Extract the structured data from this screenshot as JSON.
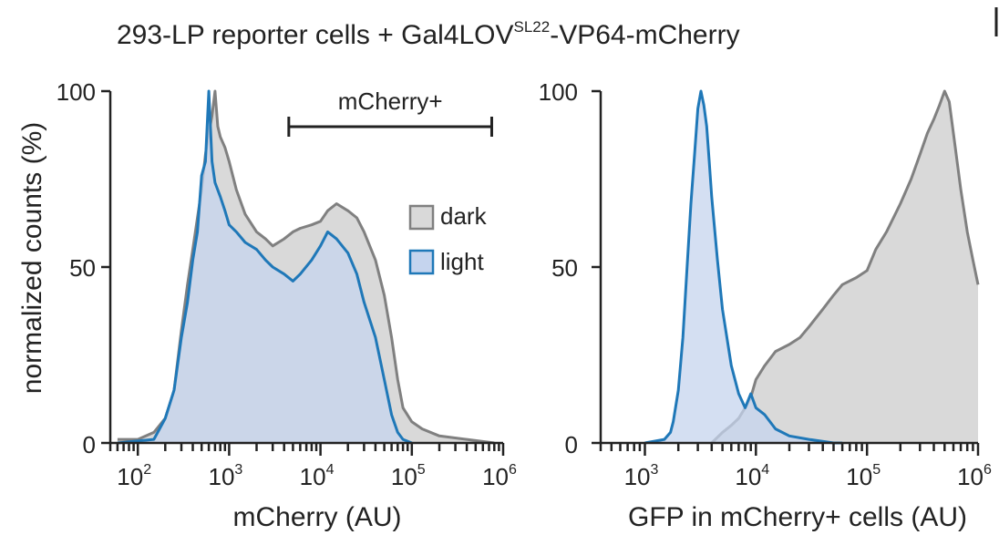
{
  "figure": {
    "title_main": "293-LP reporter cells + Gal4LOV",
    "title_sup": "SL22",
    "title_end": "-VP64-mCherry"
  },
  "colors": {
    "dark_fill": "#d9d9d9",
    "dark_line": "#808080",
    "light_fill": "#c5d4ee",
    "light_line": "#1f78b8",
    "overlap_fill": "#a9b6cc",
    "axis": "#222222"
  },
  "chart_data": [
    {
      "type": "area",
      "panel": "left",
      "xlabel": "mCherry (AU)",
      "ylabel": "normalized counts (%)",
      "xscale": "log",
      "xlim": [
        50,
        1000000
      ],
      "ylim": [
        0,
        100
      ],
      "xtick_labels": [
        "10",
        "10",
        "10",
        "10",
        "10"
      ],
      "xtick_exponents": [
        "2",
        "3",
        "4",
        "5",
        "6"
      ],
      "ytick_labels": [
        "0",
        "50",
        "100"
      ],
      "legend": {
        "position": "center-right",
        "entries": [
          "dark",
          "light"
        ]
      },
      "gate": {
        "label": "mCherry+",
        "x_from": 4500,
        "x_to": 750000
      },
      "series": [
        {
          "name": "dark",
          "points": [
            [
              60,
              1
            ],
            [
              100,
              1
            ],
            [
              150,
              3
            ],
            [
              200,
              7
            ],
            [
              250,
              15
            ],
            [
              300,
              32
            ],
            [
              350,
              45
            ],
            [
              400,
              55
            ],
            [
              450,
              64
            ],
            [
              500,
              72
            ],
            [
              550,
              82
            ],
            [
              600,
              88
            ],
            [
              650,
              93
            ],
            [
              700,
              100
            ],
            [
              750,
              90
            ],
            [
              800,
              87
            ],
            [
              900,
              84
            ],
            [
              1000,
              80
            ],
            [
              1200,
              72
            ],
            [
              1500,
              65
            ],
            [
              2000,
              60
            ],
            [
              2500,
              58
            ],
            [
              3000,
              56
            ],
            [
              4000,
              58
            ],
            [
              5000,
              60
            ],
            [
              6000,
              61
            ],
            [
              8000,
              62
            ],
            [
              10000,
              63
            ],
            [
              12000,
              66
            ],
            [
              15000,
              68
            ],
            [
              20000,
              66
            ],
            [
              25000,
              64
            ],
            [
              30000,
              60
            ],
            [
              40000,
              52
            ],
            [
              50000,
              42
            ],
            [
              60000,
              30
            ],
            [
              70000,
              18
            ],
            [
              80000,
              10
            ],
            [
              100000,
              6
            ],
            [
              130000,
              4
            ],
            [
              200000,
              2
            ],
            [
              400000,
              1
            ],
            [
              800000,
              0
            ]
          ]
        },
        {
          "name": "light",
          "points": [
            [
              60,
              0
            ],
            [
              150,
              1
            ],
            [
              200,
              7
            ],
            [
              250,
              15
            ],
            [
              300,
              30
            ],
            [
              350,
              40
            ],
            [
              400,
              52
            ],
            [
              450,
              60
            ],
            [
              500,
              76
            ],
            [
              550,
              80
            ],
            [
              600,
              100
            ],
            [
              650,
              80
            ],
            [
              700,
              74
            ],
            [
              800,
              70
            ],
            [
              900,
              66
            ],
            [
              1000,
              62
            ],
            [
              1200,
              60
            ],
            [
              1500,
              57
            ],
            [
              2000,
              55
            ],
            [
              2500,
              52
            ],
            [
              3000,
              50
            ],
            [
              4000,
              48
            ],
            [
              5000,
              46
            ],
            [
              6000,
              48
            ],
            [
              8000,
              52
            ],
            [
              10000,
              56
            ],
            [
              12000,
              60
            ],
            [
              15000,
              58
            ],
            [
              20000,
              54
            ],
            [
              25000,
              48
            ],
            [
              30000,
              40
            ],
            [
              40000,
              30
            ],
            [
              50000,
              18
            ],
            [
              60000,
              8
            ],
            [
              70000,
              3
            ],
            [
              80000,
              1
            ],
            [
              100000,
              0
            ]
          ]
        }
      ]
    },
    {
      "type": "area",
      "panel": "right",
      "xlabel": "GFP in mCherry+ cells (AU)",
      "xscale": "log",
      "xlim": [
        400,
        1000000
      ],
      "ylim": [
        0,
        100
      ],
      "xtick_labels": [
        "10",
        "10",
        "10",
        "10"
      ],
      "xtick_exponents": [
        "3",
        "4",
        "5",
        "6"
      ],
      "ytick_labels": [
        "0",
        "50",
        "100"
      ],
      "series": [
        {
          "name": "dark",
          "points": [
            [
              4000,
              0
            ],
            [
              5000,
              3
            ],
            [
              6000,
              5
            ],
            [
              7000,
              7
            ],
            [
              8000,
              10
            ],
            [
              9000,
              13
            ],
            [
              10000,
              18
            ],
            [
              12000,
              22
            ],
            [
              15000,
              26
            ],
            [
              20000,
              28
            ],
            [
              25000,
              30
            ],
            [
              30000,
              33
            ],
            [
              40000,
              38
            ],
            [
              50000,
              42
            ],
            [
              60000,
              45
            ],
            [
              80000,
              47
            ],
            [
              100000,
              49
            ],
            [
              120000,
              55
            ],
            [
              150000,
              60
            ],
            [
              200000,
              68
            ],
            [
              250000,
              75
            ],
            [
              300000,
              82
            ],
            [
              350000,
              88
            ],
            [
              400000,
              92
            ],
            [
              450000,
              96
            ],
            [
              500000,
              100
            ],
            [
              550000,
              97
            ],
            [
              600000,
              88
            ],
            [
              700000,
              72
            ],
            [
              800000,
              60
            ],
            [
              900000,
              52
            ],
            [
              1000000,
              45
            ]
          ]
        },
        {
          "name": "light",
          "points": [
            [
              1000,
              0
            ],
            [
              1500,
              1
            ],
            [
              1700,
              3
            ],
            [
              1800,
              6
            ],
            [
              2000,
              15
            ],
            [
              2200,
              30
            ],
            [
              2400,
              50
            ],
            [
              2600,
              68
            ],
            [
              2800,
              82
            ],
            [
              3000,
              95
            ],
            [
              3200,
              100
            ],
            [
              3400,
              96
            ],
            [
              3600,
              90
            ],
            [
              3800,
              80
            ],
            [
              4000,
              70
            ],
            [
              4500,
              52
            ],
            [
              5000,
              38
            ],
            [
              6000,
              22
            ],
            [
              7000,
              14
            ],
            [
              8000,
              10
            ],
            [
              9000,
              14
            ],
            [
              10000,
              10
            ],
            [
              12000,
              8
            ],
            [
              15000,
              4
            ],
            [
              20000,
              2
            ],
            [
              30000,
              1
            ],
            [
              50000,
              0
            ],
            [
              60000,
              0
            ]
          ]
        }
      ]
    }
  ]
}
